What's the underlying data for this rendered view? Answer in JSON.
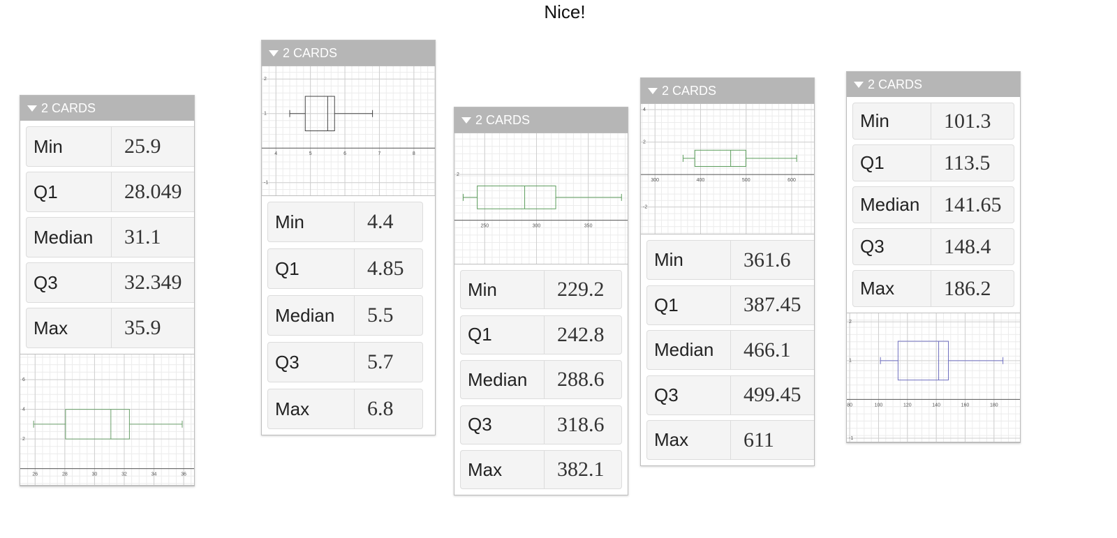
{
  "title": "Nice!",
  "groups": [
    {
      "header": "2 CARDS",
      "stats": [
        {
          "label": "Min",
          "value": 25.9
        },
        {
          "label": "Q1",
          "value": 28.049
        },
        {
          "label": "Median",
          "value": 31.1
        },
        {
          "label": "Q3",
          "value": 32.349
        },
        {
          "label": "Max",
          "value": 35.9
        }
      ],
      "plot": {
        "xlim": [
          25,
          36.7
        ],
        "xticks": [
          26,
          28,
          30,
          32,
          34,
          36
        ],
        "ylim": [
          -1.1,
          7.7
        ],
        "yticks": [
          6,
          4,
          2
        ],
        "color": "#6a9f6a"
      }
    },
    {
      "header": "2 CARDS",
      "stats": [
        {
          "label": "Min",
          "value": 4.4
        },
        {
          "label": "Q1",
          "value": 4.85
        },
        {
          "label": "Median",
          "value": 5.5
        },
        {
          "label": "Q3",
          "value": 5.7
        },
        {
          "label": "Max",
          "value": 6.8
        }
      ],
      "plot": {
        "xlim": [
          3.59,
          8.61
        ],
        "xticks": [
          4,
          5,
          6,
          7,
          8
        ],
        "ylim": [
          -1.37,
          2.37
        ],
        "yticks": [
          2,
          1,
          -1
        ],
        "color": "#444444"
      }
    },
    {
      "header": "2 CARDS",
      "stats": [
        {
          "label": "Min",
          "value": 229.2
        },
        {
          "label": "Q1",
          "value": 242.8
        },
        {
          "label": "Median",
          "value": 288.6
        },
        {
          "label": "Q3",
          "value": 318.6
        },
        {
          "label": "Max",
          "value": 382.1
        }
      ],
      "plot": {
        "xlim": [
          220.8,
          388
        ],
        "xticks": [
          250,
          300,
          350
        ],
        "ylim": [
          -1.9,
          3.8
        ],
        "yticks": [
          2
        ],
        "color": "#5c9c5c"
      }
    },
    {
      "header": "2 CARDS",
      "stats": [
        {
          "label": "Min",
          "value": 361.6
        },
        {
          "label": "Q1",
          "value": 387.45
        },
        {
          "label": "Median",
          "value": 466.1
        },
        {
          "label": "Q3",
          "value": 499.45
        },
        {
          "label": "Max",
          "value": 611
        }
      ],
      "plot": {
        "xlim": [
          269,
          649
        ],
        "xticks": [
          300,
          400,
          500,
          600
        ],
        "ylim": [
          -3.65,
          4.35
        ],
        "yticks": [
          4,
          2,
          -2
        ],
        "color": "#5a9c5a"
      }
    },
    {
      "header": "2 CARDS",
      "stats": [
        {
          "label": "Min",
          "value": 101.3
        },
        {
          "label": "Q1",
          "value": 113.5
        },
        {
          "label": "Median",
          "value": 141.65
        },
        {
          "label": "Q3",
          "value": 148.4
        },
        {
          "label": "Max",
          "value": 186.2
        }
      ],
      "plot": {
        "xlim": [
          78,
          198
        ],
        "xticks": [
          80,
          100,
          120,
          140,
          160,
          180
        ],
        "ylim": [
          -1.09,
          2.22
        ],
        "yticks": [
          2,
          1,
          -1
        ],
        "color": "#6f6fc0"
      }
    }
  ]
}
